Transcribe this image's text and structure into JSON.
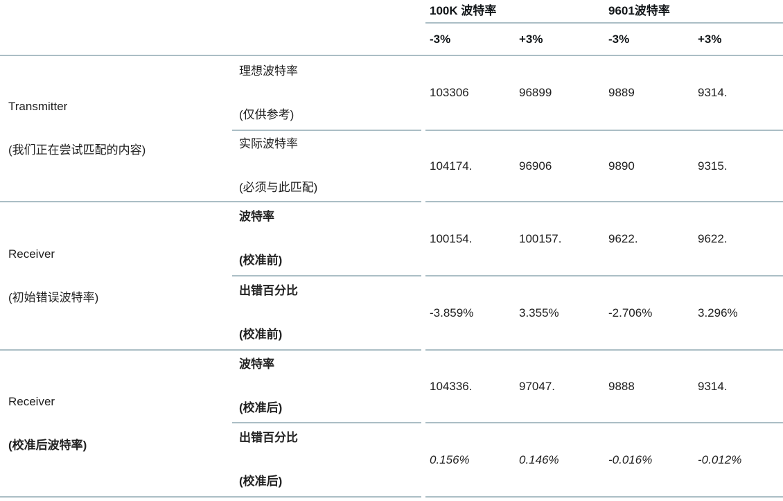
{
  "table": {
    "column_groups": [
      "100K 波特率",
      "9601波特率"
    ],
    "sub_headers": [
      "-3%",
      "+3%",
      "-3%",
      "+3%"
    ],
    "sections": [
      {
        "group_label": [
          "Transmitter",
          "(我们正在尝试匹配的内容)"
        ],
        "rows": [
          {
            "label": [
              "理想波特率",
              "(仅供参考)"
            ],
            "values": [
              "103306",
              "96899",
              "9889",
              "9314."
            ]
          },
          {
            "label": [
              "实际波特率",
              "(必须与此匹配)"
            ],
            "values": [
              "104174.",
              "96906",
              "9890",
              "9315."
            ]
          }
        ]
      },
      {
        "group_label": [
          "Receiver",
          "(初始错误波特率)"
        ],
        "rows": [
          {
            "label": [
              "波特率",
              "(校准前)"
            ],
            "values": [
              "100154.",
              "100157.",
              "9622.",
              "9622."
            ]
          },
          {
            "label": [
              "出错百分比",
              "(校准前)"
            ],
            "values": [
              "-3.859%",
              "3.355%",
              "-2.706%",
              "3.296%"
            ]
          }
        ]
      },
      {
        "group_label": [
          "Receiver",
          "(校准后波特率)"
        ],
        "rows": [
          {
            "label": [
              "波特率",
              "(校准后)"
            ],
            "values": [
              "104336.",
              "97047.",
              "9888",
              "9314."
            ]
          },
          {
            "label": [
              "出错百分比",
              "(校准后)"
            ],
            "values": [
              "0.156%",
              "0.146%",
              "-0.016%",
              "-0.012%"
            ]
          }
        ]
      }
    ],
    "colors": {
      "border": "#abbec5",
      "text": "#212121",
      "header_text": "#111518"
    }
  }
}
